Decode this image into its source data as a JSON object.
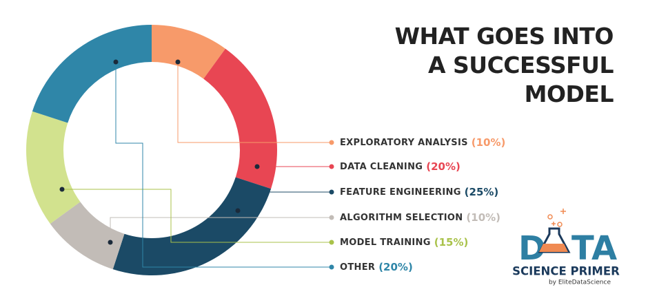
{
  "chart_data": {
    "type": "donut",
    "title": "WHAT GOES INTO A SUCCESSFUL MODEL",
    "categories": [
      "EXPLORATORY ANALYSIS",
      "DATA CLEANING",
      "FEATURE ENGINEERING",
      "ALGORITHM SELECTION",
      "MODEL TRAINING",
      "OTHER"
    ],
    "values": [
      10,
      20,
      25,
      10,
      15,
      20
    ],
    "value_labels": [
      "(10%)",
      "(20%)",
      "(25%)",
      "(10%)",
      "(15%)",
      "(20%)"
    ],
    "colors": [
      "#f79a6a",
      "#e84653",
      "#1b4a66",
      "#c2bcb7",
      "#d2e28e",
      "#2f86a8"
    ]
  },
  "logo": {
    "word_start": "D",
    "word_end": "TA",
    "subtitle": "SCIENCE PRIMER",
    "byline": "by EliteDataScience"
  }
}
